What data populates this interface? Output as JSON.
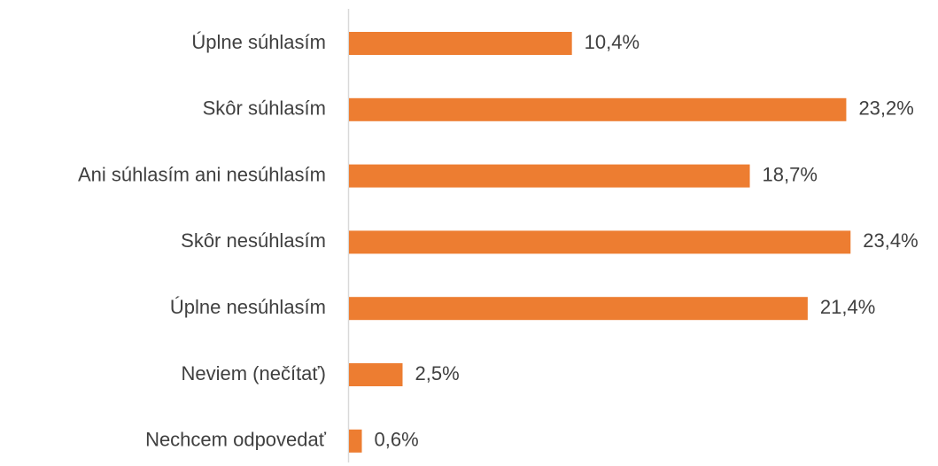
{
  "chart_data": {
    "type": "bar",
    "orientation": "horizontal",
    "categories": [
      "Úplne súhlasím",
      "Skôr súhlasím",
      "Ani súhlasím ani nesúhlasím",
      "Skôr nesúhlasím",
      "Úplne nesúhlasím",
      "Neviem (nečítať)",
      "Nechcem odpovedať"
    ],
    "values": [
      10.4,
      23.2,
      18.7,
      23.4,
      21.4,
      2.5,
      0.6
    ],
    "value_labels": [
      "10,4%",
      "23,2%",
      "18,7%",
      "23,4%",
      "21,4%",
      "2,5%",
      "0,6%"
    ],
    "color": "#ed7d31"
  }
}
